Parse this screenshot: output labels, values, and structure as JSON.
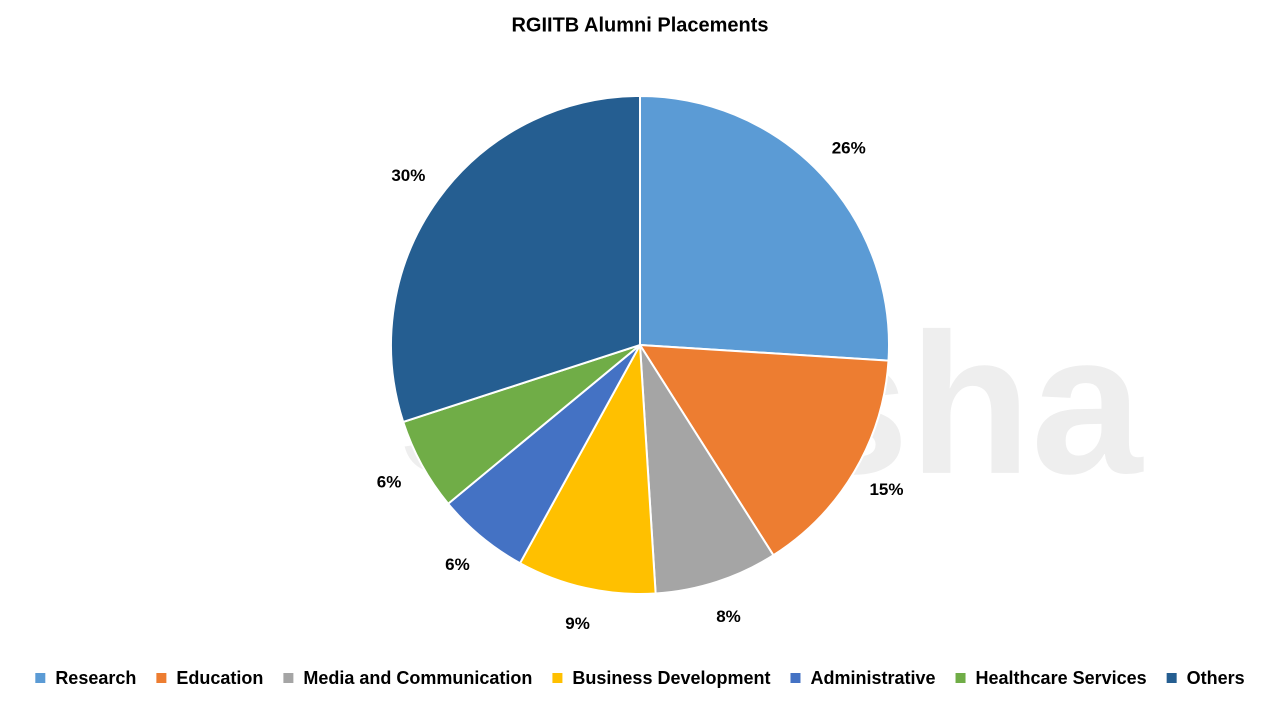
{
  "chart_data": {
    "type": "pie",
    "title": "RGIITB Alumni Placements",
    "watermark": "shiksha",
    "categories": [
      "Research",
      "Education",
      "Media and Communication",
      "Business Development",
      "Administrative",
      "Healthcare Services",
      "Others"
    ],
    "values": [
      26,
      15,
      8,
      9,
      6,
      6,
      30
    ],
    "value_labels": [
      "26%",
      "15%",
      "8%",
      "9%",
      "6%",
      "6%",
      "30%"
    ],
    "colors": [
      "#5b9bd5",
      "#ed7d31",
      "#a5a5a5",
      "#ffc000",
      "#4472c4",
      "#70ad47",
      "#255e91"
    ],
    "legend": "bottom"
  }
}
